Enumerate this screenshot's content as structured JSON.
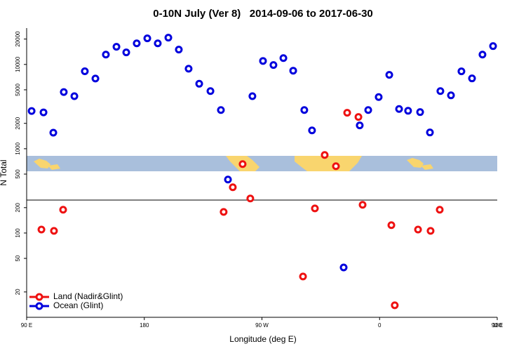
{
  "chart_data": {
    "type": "scatter",
    "title": "0-10N July (Ver 8)   2014-09-06 to 2017-06-30",
    "x_label": "Longitude (deg E)",
    "y_label": "N Total",
    "log_y": true,
    "legend": "lower left",
    "xlim": [
      90,
      450
    ],
    "xticks": [
      {
        "value": 90,
        "label": "90 E"
      },
      180,
      {
        "value": 270,
        "label": "90 W"
      },
      {
        "value": 360,
        "label": "0"
      },
      {
        "value": 450,
        "label": "90 E"
      },
      {
        "value": 540,
        "label": "180"
      }
    ],
    "ylim": [
      10,
      27000
    ],
    "yticks": [
      20,
      50,
      100,
      200,
      500,
      1000,
      2000,
      5000,
      10000,
      20000
    ],
    "series": [
      {
        "name": "Land (Nadir&Glint)",
        "color": "#ee1111",
        "x": [
          101.3,
          110.9,
          117.9,
          240.7,
          247.7,
          255.2,
          261.1,
          301.4,
          310.5,
          318,
          326.6,
          335.2,
          343.8,
          347,
          369,
          371.6,
          389.4,
          399,
          406
        ],
        "values": [
          110,
          106,
          189,
          178,
          349,
          657,
          257,
          30.5,
          196,
          843,
          621,
          2670,
          2380,
          216,
          124,
          13.9,
          110,
          106,
          189
        ]
      },
      {
        "name": "Ocean (Glint)",
        "color": "#0000dd",
        "x": [
          93.8,
          102.9,
          110.4,
          118.4,
          126.5,
          134.5,
          142.6,
          150.6,
          158.7,
          166.2,
          174.2,
          182.3,
          190.3,
          198.4,
          206.4,
          213.9,
          222,
          230.6,
          238.6,
          244,
          262.7,
          270.8,
          278.8,
          286.4,
          293.9,
          302.4,
          308.3,
          332.5,
          344.8,
          351.3,
          359.3,
          367.4,
          374.9,
          381.8,
          391,
          398.5,
          406.5,
          414.6,
          422.6,
          430.7,
          438.7,
          446.8
        ],
        "values": [
          2800,
          2700,
          1550,
          4700,
          4200,
          8300,
          6800,
          13100,
          16200,
          13900,
          17800,
          20400,
          17800,
          20800,
          15000,
          8900,
          5900,
          4830,
          2880,
          431,
          4200,
          11000,
          9840,
          11900,
          8430,
          2880,
          1650,
          39,
          1890,
          2880,
          4100,
          7520,
          2960,
          2820,
          2720,
          1560,
          4830,
          4300,
          8280,
          6830,
          13100,
          16500
        ]
      }
    ]
  }
}
